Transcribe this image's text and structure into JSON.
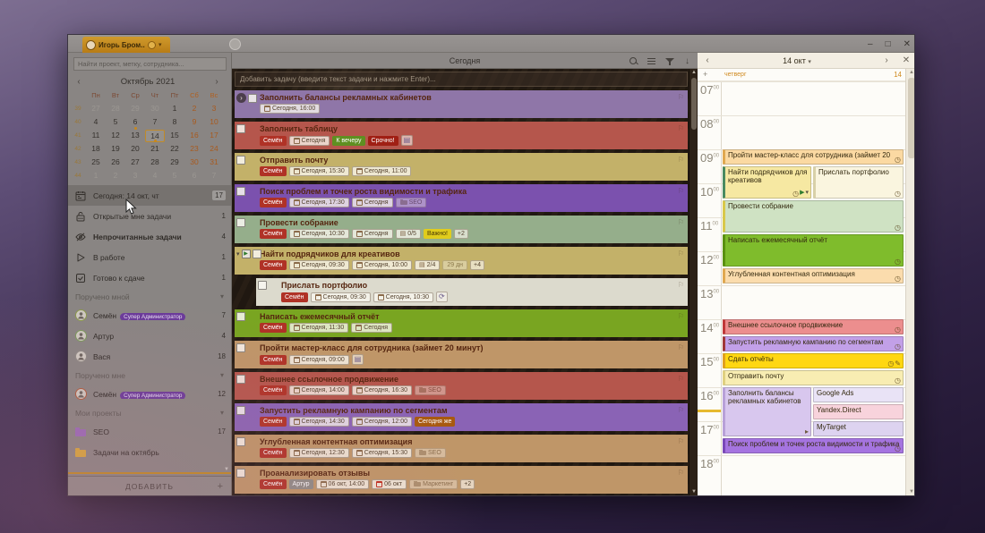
{
  "accent": {
    "orange": "#c8881c",
    "dim_overlay": "#221a12",
    "selected_day_border": "#c08a28"
  },
  "titlebar": {
    "account_tab": "Игорь Бром...",
    "controls": {
      "minimize": "–",
      "maximize": "□",
      "close": "✕"
    }
  },
  "icons": {
    "download": "↓",
    "prev": "‹",
    "next": "›",
    "close": "✕",
    "dropdown": "▾",
    "add": "+",
    "scroll_up": "▴",
    "scroll_down": "▾",
    "flag": "⚑"
  },
  "sidebar": {
    "search_placeholder": "Найти проект, метку, сотрудника...",
    "calendar": {
      "title": "Октябрь 2021",
      "weekdays": [
        "Пн",
        "Вт",
        "Ср",
        "Чт",
        "Пт",
        "Сб",
        "Вс"
      ],
      "weeks": [
        {
          "num": 39,
          "days": [
            27,
            28,
            29,
            30,
            1,
            2,
            3
          ],
          "muted_before": 4,
          "muted_all": false
        },
        {
          "num": 40,
          "days": [
            4,
            5,
            6,
            7,
            8,
            9,
            10
          ],
          "muted_before": 0,
          "muted_all": false
        },
        {
          "num": 41,
          "days": [
            11,
            12,
            13,
            14,
            15,
            16,
            17
          ],
          "muted_before": 0,
          "muted_all": false
        },
        {
          "num": 42,
          "days": [
            18,
            19,
            20,
            21,
            22,
            23,
            24
          ],
          "muted_before": 0,
          "muted_all": false
        },
        {
          "num": 43,
          "days": [
            25,
            26,
            27,
            28,
            29,
            30,
            31
          ],
          "muted_before": 0,
          "muted_all": false
        },
        {
          "num": 44,
          "days": [
            1,
            2,
            3,
            4,
            5,
            6,
            7
          ],
          "muted_before": 7,
          "muted_all": true
        }
      ],
      "selected": {
        "week": 41,
        "day": 14
      },
      "dots": [
        {
          "week": 40,
          "day": 6
        },
        {
          "week": 41,
          "day": 14
        }
      ]
    },
    "items": [
      {
        "type": "view",
        "icon": "calendar",
        "label": "Сегодня: 14 окт, чт",
        "count": "17",
        "selected": true,
        "count_boxed": true
      },
      {
        "type": "view",
        "icon": "lock",
        "label": "Открытые мне задачи",
        "count": "1"
      },
      {
        "type": "view",
        "icon": "eye-off",
        "label": "Непрочитанные задачи",
        "count": "4",
        "bold": true
      },
      {
        "type": "view",
        "icon": "play",
        "label": "В работе",
        "count": "1"
      },
      {
        "type": "view",
        "icon": "check",
        "label": "Готово к сдаче",
        "count": "1"
      },
      {
        "type": "section",
        "label": "Поручено мной"
      },
      {
        "type": "person",
        "label": "Семён",
        "badge": "Супер Администратор",
        "count": "7",
        "ring": "#8a9a4a"
      },
      {
        "type": "person",
        "label": "Артур",
        "count": "4",
        "ring": "#7a9a5a"
      },
      {
        "type": "person",
        "label": "Вася",
        "count": "18",
        "ring": "#8f8b86"
      },
      {
        "type": "section",
        "label": "Поручено мне"
      },
      {
        "type": "person",
        "label": "Семён",
        "badge": "Супер Администратор",
        "count": "12",
        "ring": "#b05a3a"
      },
      {
        "type": "section",
        "label": "Мои проекты"
      },
      {
        "type": "project",
        "label": "SEO",
        "count": "17",
        "folder": "#9a6ab8"
      },
      {
        "type": "project",
        "label": "Задачи на октябрь",
        "count": "",
        "folder": "#d8a83a"
      }
    ],
    "add_button": "ДОБАВИТЬ"
  },
  "tasks_panel": {
    "title": "Сегодня",
    "add_placeholder": "Добавить задачу (введите текст задачи и нажмите Enter)...",
    "tasks": [
      {
        "title": "Заполнить балансы рекламных кабинетов",
        "color": "#8f76a8",
        "expand": "right",
        "badges": [
          [
            "date",
            "Сегодня, 16:00"
          ]
        ]
      },
      {
        "title": "Заполнить таблицу",
        "color": "#b5564c",
        "badges": [
          [
            "assignee",
            "Семён"
          ],
          [
            "date",
            "Сегодня"
          ],
          [
            "tag-green",
            "К вечеру"
          ],
          [
            "tag-red",
            "Срочно!"
          ],
          [
            "note",
            "▤"
          ]
        ]
      },
      {
        "title": "Отправить почту",
        "color": "#c3b169",
        "badges": [
          [
            "assignee",
            "Семён"
          ],
          [
            "date",
            "Сегодня, 15:30"
          ],
          [
            "date",
            "Сегодня, 11:00"
          ]
        ]
      },
      {
        "title": "Поиск проблем и точек роста видимости и трафика",
        "color": "#7b51ae",
        "badges": [
          [
            "assignee",
            "Семён"
          ],
          [
            "date",
            "Сегодня, 17:30"
          ],
          [
            "date",
            "Сегодня"
          ],
          [
            "project",
            "SEO"
          ]
        ]
      },
      {
        "title": "Провести собрание",
        "color": "#95ae8b",
        "badges": [
          [
            "assignee",
            "Семён"
          ],
          [
            "date",
            "Сегодня, 10:30"
          ],
          [
            "date",
            "Сегодня"
          ],
          [
            "check",
            "0/5"
          ],
          [
            "tag-yellow",
            "Важно!"
          ],
          [
            "more",
            "+2"
          ]
        ]
      },
      {
        "title": "Найти подрядчиков для креативов",
        "color": "#c3b169",
        "expand": "down",
        "play": true,
        "badges": [
          [
            "assignee",
            "Семён"
          ],
          [
            "date",
            "Сегодня, 09:30"
          ],
          [
            "date",
            "Сегодня, 10:00"
          ],
          [
            "check",
            "2/4"
          ],
          [
            "days",
            "29 дн"
          ],
          [
            "more",
            "+4"
          ]
        ]
      },
      {
        "title": "Прислать портфолио",
        "color": "#dcdacd",
        "indent": true,
        "badges": [
          [
            "assignee",
            "Семён"
          ],
          [
            "date",
            "Сегодня, 09:30"
          ],
          [
            "date",
            "Сегодня, 10:30"
          ],
          [
            "repeat",
            "⟳"
          ]
        ]
      },
      {
        "title": "Написать ежемесячный отчёт",
        "color": "#79a521",
        "badges": [
          [
            "assignee",
            "Семён"
          ],
          [
            "date",
            "Сегодня, 11:30"
          ],
          [
            "date",
            "Сегодня"
          ]
        ]
      },
      {
        "title": "Пройти мастер-класс для сотрудника (займет 20 минут)",
        "color": "#bf9668",
        "badges": [
          [
            "assignee",
            "Семён"
          ],
          [
            "date",
            "Сегодня, 09:00"
          ],
          [
            "note",
            "▤"
          ]
        ]
      },
      {
        "title": "Внешнее ссылочное продвижение",
        "color": "#b5564c",
        "badges": [
          [
            "assignee",
            "Семён"
          ],
          [
            "date",
            "Сегодня, 14:00"
          ],
          [
            "date",
            "Сегодня, 16:30"
          ],
          [
            "project",
            "SEO"
          ]
        ]
      },
      {
        "title": "Запустить рекламную кампанию по сегментам",
        "color": "#8a63b5",
        "badges": [
          [
            "assignee",
            "Семён"
          ],
          [
            "date",
            "Сегодня, 14:30"
          ],
          [
            "date",
            "Сегодня, 12:00"
          ],
          [
            "tag-orange",
            "Сегодня же"
          ]
        ]
      },
      {
        "title": "Углубленная контентная оптимизация",
        "color": "#bf9668",
        "badges": [
          [
            "assignee",
            "Семён"
          ],
          [
            "date",
            "Сегодня, 12:30"
          ],
          [
            "date",
            "Сегодня, 15:30"
          ],
          [
            "project",
            "SEO"
          ]
        ]
      },
      {
        "title": "Проанализировать отзывы",
        "color": "#bf9668",
        "badges": [
          [
            "assignee",
            "Семён"
          ],
          [
            "assignee-gray",
            "Артур"
          ],
          [
            "date",
            "06 окт, 14:00"
          ],
          [
            "date-red",
            "06 окт"
          ],
          [
            "project",
            "Маркетинг"
          ],
          [
            "more",
            "+2"
          ]
        ]
      }
    ]
  },
  "day_panel": {
    "date_label": "14 окт",
    "weekday_label": "четверг",
    "day_number": "14",
    "hours": [
      "07",
      "08",
      "09",
      "10",
      "11",
      "12",
      "13",
      "14",
      "15",
      "16",
      "17",
      "18"
    ],
    "current_time": "16:40",
    "events": [
      {
        "title": "Пройти мастер-класс для сотрудника (займет 20",
        "start": "09:00",
        "end": "09:30",
        "color": "#fbd9a2",
        "stripe": "#e0a850",
        "icons": [
          "alarm"
        ]
      },
      {
        "title": "Найти подрядчиков для креативов",
        "start": "09:30",
        "end": "10:30",
        "color": "#f6e8a2",
        "stripe": "#4a8a60",
        "col": "left",
        "icons": [
          "alarm",
          "play",
          "chevron"
        ]
      },
      {
        "title": "Прислать портфолио",
        "start": "09:30",
        "end": "10:30",
        "color": "#faf5df",
        "stripe": "#d8d0a8",
        "col": "right",
        "icons": [
          "alarm"
        ]
      },
      {
        "title": "Провести собрание",
        "start": "10:30",
        "end": "11:30",
        "color": "#cfe2c3",
        "stripe": "#d8c84a",
        "icons": [
          "alarm"
        ]
      },
      {
        "title": "Написать ежемесячный отчёт",
        "start": "11:30",
        "end": "12:30",
        "color": "#7fbc2c",
        "stripe": "#5a9010",
        "icons": [
          "alarm"
        ]
      },
      {
        "title": "Углубленная контентная оптимизация",
        "start": "12:30",
        "end": "13:00",
        "color": "#fbdcad",
        "stripe": "#e0a850",
        "icons": [
          "alarm"
        ]
      },
      {
        "title": "Внешнее ссылочное продвижение",
        "start": "14:00",
        "end": "14:30",
        "color": "#ec8e8e",
        "stripe": "#c03838",
        "icons": [
          "alarm"
        ]
      },
      {
        "title": "Запустить рекламную кампанию по сегментам",
        "start": "14:30",
        "end": "15:00",
        "color": "#c2a0e8",
        "stripe": "#a03838",
        "icons": [
          "alarm"
        ]
      },
      {
        "title": "Сдать отчёты",
        "start": "15:00",
        "end": "15:30",
        "color": "#ffd712",
        "stripe": "#e0a020",
        "icons": [
          "alarm",
          "wrench"
        ]
      },
      {
        "title": "Отправить почту",
        "start": "15:30",
        "end": "16:00",
        "color": "#f8edb2",
        "stripe": "#e0d080",
        "icons": [
          "alarm"
        ]
      },
      {
        "title": "Заполнить балансы рекламных кабинетов",
        "start": "16:00",
        "end": "17:30",
        "color": "#d8c7ee",
        "stripe": "#b8a0d8",
        "col": "left",
        "icons": [
          "arrow"
        ]
      },
      {
        "title": "Google Ads",
        "start": "16:00",
        "end": "16:30",
        "color": "#e9e3f6",
        "col": "right",
        "icons": []
      },
      {
        "title": "Yandex.Direct",
        "start": "16:30",
        "end": "17:00",
        "color": "#f8d3dc",
        "col": "right",
        "icons": []
      },
      {
        "title": "MyTarget",
        "start": "17:00",
        "end": "17:30",
        "color": "#ddd3f0",
        "col": "right",
        "icons": []
      },
      {
        "title": "Поиск проблем и точек роста видимости и трафика",
        "start": "17:30",
        "end": "18:00",
        "color": "#a574e0",
        "stripe": "#7a48b8",
        "icons": [
          "alarm"
        ]
      }
    ]
  }
}
